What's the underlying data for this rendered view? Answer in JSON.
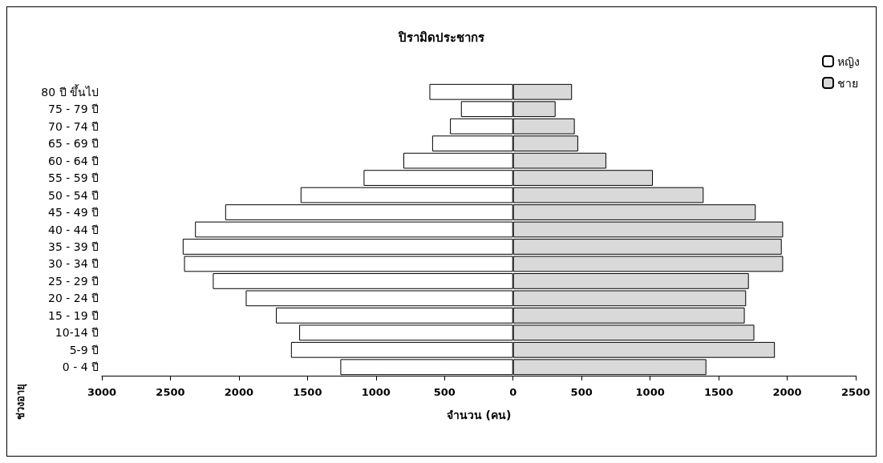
{
  "chart_data": {
    "type": "bar",
    "orientation": "horizontal",
    "stacked": true,
    "title": "ปิรามิดประชากร",
    "xlabel": "จำนวน (คน)",
    "ylabel": "ช่วงอายุ",
    "categories": [
      "80 ปี ขึ้นไป",
      "75 - 79 ปี",
      "70 - 74 ปี",
      "65 - 69 ปี",
      "60 - 64 ปี",
      "55 - 59 ปี",
      "50 - 54 ปี",
      "45 - 49 ปี",
      "40 - 44 ปี",
      "35 - 39 ปี",
      "30 - 34 ปี",
      "25 - 29 ปี",
      "20 - 24 ปี",
      "15 - 19 ปี",
      "10-14 ปี",
      "5-9 ปี",
      "0 - 4 ปี"
    ],
    "series": [
      {
        "name": "หญิง",
        "color": "#ffffff",
        "values": [
          -610,
          -380,
          -460,
          -590,
          -800,
          -1090,
          -1550,
          -2100,
          -2320,
          -2410,
          -2400,
          -2190,
          -1950,
          -1730,
          -1560,
          -1620,
          -1260
        ]
      },
      {
        "name": "ชาย",
        "color": "#d9d9d9",
        "values": [
          430,
          310,
          450,
          475,
          680,
          1020,
          1390,
          1770,
          1970,
          1960,
          1970,
          1720,
          1700,
          1690,
          1760,
          1910,
          1410
        ]
      }
    ],
    "xlim": [
      -3000,
      2500
    ],
    "xticks": [
      {
        "value": -3000,
        "label": "3000"
      },
      {
        "value": -2500,
        "label": "2500"
      },
      {
        "value": -2000,
        "label": "2000"
      },
      {
        "value": -1500,
        "label": "1500"
      },
      {
        "value": -1000,
        "label": "1000"
      },
      {
        "value": -500,
        "label": "500"
      },
      0,
      500,
      1000,
      1500,
      2000,
      2500
    ],
    "grid": false,
    "legend": "top right"
  }
}
